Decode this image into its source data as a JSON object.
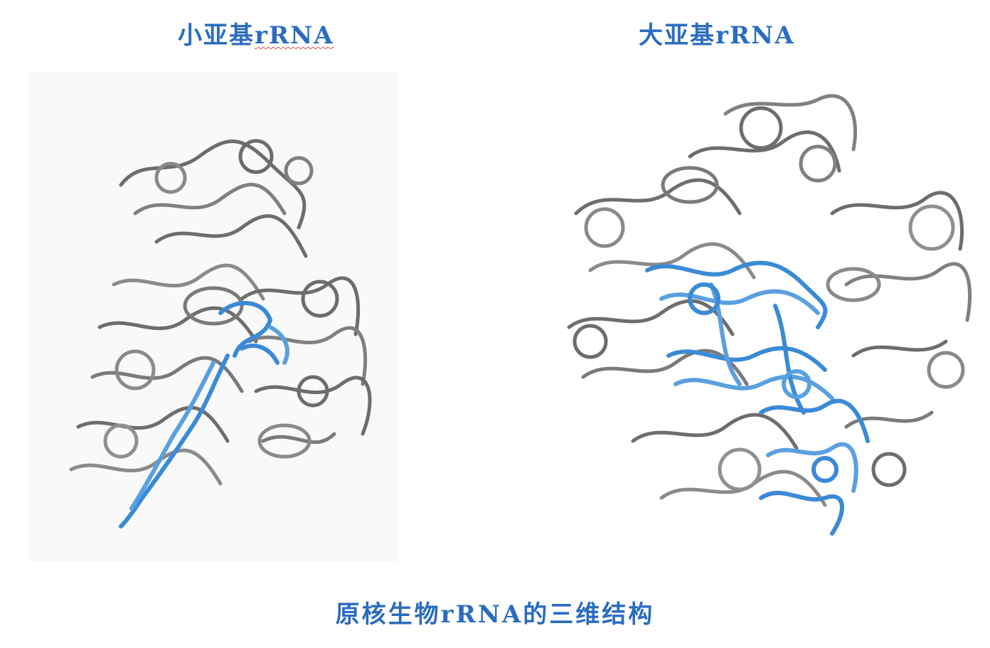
{
  "panels": {
    "small": {
      "title_prefix": "小亚基",
      "title_suffix": "rRNA"
    },
    "large": {
      "title": "大亚基rRNA"
    }
  },
  "caption": "原核生物rRNA的三维结构",
  "colors": {
    "title_text": "#2a6cc0",
    "rna_backbone": "#6d6d6d",
    "highlight_domain": "#3a8ad6"
  },
  "icons": {
    "small_subunit": "rrna-small-subunit-ribbon-structure",
    "large_subunit": "rrna-large-subunit-ribbon-structure"
  }
}
